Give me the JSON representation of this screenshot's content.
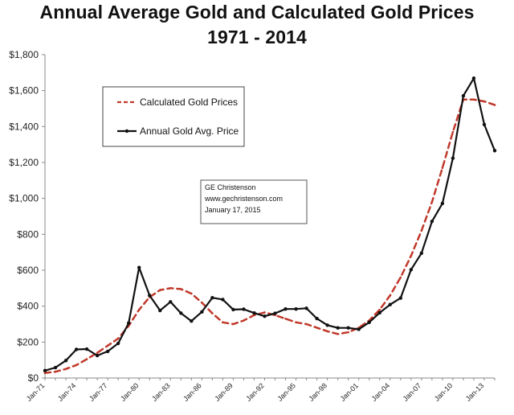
{
  "chart_data": {
    "type": "line",
    "title_lines": [
      "Annual Average Gold and Calculated Gold Prices",
      "1971 - 2014"
    ],
    "xlabel": "",
    "ylabel": "",
    "ylim": [
      0,
      1800
    ],
    "yticks": [
      0,
      200,
      400,
      600,
      800,
      1000,
      1200,
      1400,
      1600,
      1800
    ],
    "ytick_labels": [
      "$0",
      "$200",
      "$400",
      "$600",
      "$800",
      "$1,000",
      "$1,200",
      "$1,400",
      "$1,600",
      "$1,800"
    ],
    "xlim": [
      1971,
      2014
    ],
    "xticks": [
      1971,
      1974,
      1977,
      1980,
      1983,
      1986,
      1989,
      1992,
      1995,
      1998,
      2001,
      2004,
      2007,
      2010,
      2013
    ],
    "xtick_labels": [
      "Jan-71",
      "Jan-74",
      "Jan-77",
      "Jan-80",
      "Jan-83",
      "Jan-86",
      "Jan-89",
      "Jan-92",
      "Jan-95",
      "Jan-98",
      "Jan-01",
      "Jan-04",
      "Jan-07",
      "Jan-10",
      "Jan-13"
    ],
    "grid": false,
    "legend_position": "top-left",
    "series": [
      {
        "name": "Calculated Gold Prices",
        "color": "#c0392b",
        "style": "dashed",
        "points": [
          [
            1971,
            28
          ],
          [
            1972,
            35
          ],
          [
            1973,
            50
          ],
          [
            1974,
            72
          ],
          [
            1975,
            105
          ],
          [
            1976,
            140
          ],
          [
            1977,
            180
          ],
          [
            1978,
            220
          ],
          [
            1979,
            290
          ],
          [
            1980,
            380
          ],
          [
            1981,
            450
          ],
          [
            1982,
            490
          ],
          [
            1983,
            500
          ],
          [
            1984,
            495
          ],
          [
            1985,
            470
          ],
          [
            1986,
            420
          ],
          [
            1987,
            360
          ],
          [
            1988,
            310
          ],
          [
            1989,
            300
          ],
          [
            1990,
            320
          ],
          [
            1991,
            350
          ],
          [
            1992,
            365
          ],
          [
            1993,
            350
          ],
          [
            1994,
            330
          ],
          [
            1995,
            310
          ],
          [
            1996,
            300
          ],
          [
            1997,
            280
          ],
          [
            1998,
            260
          ],
          [
            1999,
            245
          ],
          [
            2000,
            255
          ],
          [
            2001,
            280
          ],
          [
            2002,
            320
          ],
          [
            2003,
            380
          ],
          [
            2004,
            460
          ],
          [
            2005,
            560
          ],
          [
            2006,
            680
          ],
          [
            2007,
            820
          ],
          [
            2008,
            980
          ],
          [
            2009,
            1170
          ],
          [
            2010,
            1370
          ],
          [
            2011,
            1550
          ],
          [
            2012,
            1550
          ],
          [
            2013,
            1540
          ],
          [
            2014,
            1520
          ]
        ]
      },
      {
        "name": "Annual Gold Avg. Price",
        "color": "#111111",
        "style": "solid",
        "points": [
          [
            1971,
            41
          ],
          [
            1972,
            58
          ],
          [
            1973,
            97
          ],
          [
            1974,
            159
          ],
          [
            1975,
            161
          ],
          [
            1976,
            125
          ],
          [
            1977,
            148
          ],
          [
            1978,
            193
          ],
          [
            1979,
            306
          ],
          [
            1980,
            615
          ],
          [
            1981,
            460
          ],
          [
            1982,
            376
          ],
          [
            1983,
            424
          ],
          [
            1984,
            361
          ],
          [
            1985,
            317
          ],
          [
            1986,
            368
          ],
          [
            1987,
            447
          ],
          [
            1988,
            437
          ],
          [
            1989,
            381
          ],
          [
            1990,
            383
          ],
          [
            1991,
            362
          ],
          [
            1992,
            344
          ],
          [
            1993,
            360
          ],
          [
            1994,
            384
          ],
          [
            1995,
            384
          ],
          [
            1996,
            388
          ],
          [
            1997,
            331
          ],
          [
            1998,
            294
          ],
          [
            1999,
            279
          ],
          [
            2000,
            279
          ],
          [
            2001,
            271
          ],
          [
            2002,
            310
          ],
          [
            2003,
            363
          ],
          [
            2004,
            409
          ],
          [
            2005,
            445
          ],
          [
            2006,
            603
          ],
          [
            2007,
            695
          ],
          [
            2008,
            872
          ],
          [
            2009,
            972
          ],
          [
            2010,
            1224
          ],
          [
            2011,
            1571
          ],
          [
            2012,
            1669
          ],
          [
            2013,
            1411
          ],
          [
            2014,
            1266
          ]
        ]
      }
    ],
    "annotation": {
      "lines": [
        "GE Christenson",
        "www.gechristenson.com",
        "January 17, 2015"
      ]
    }
  }
}
